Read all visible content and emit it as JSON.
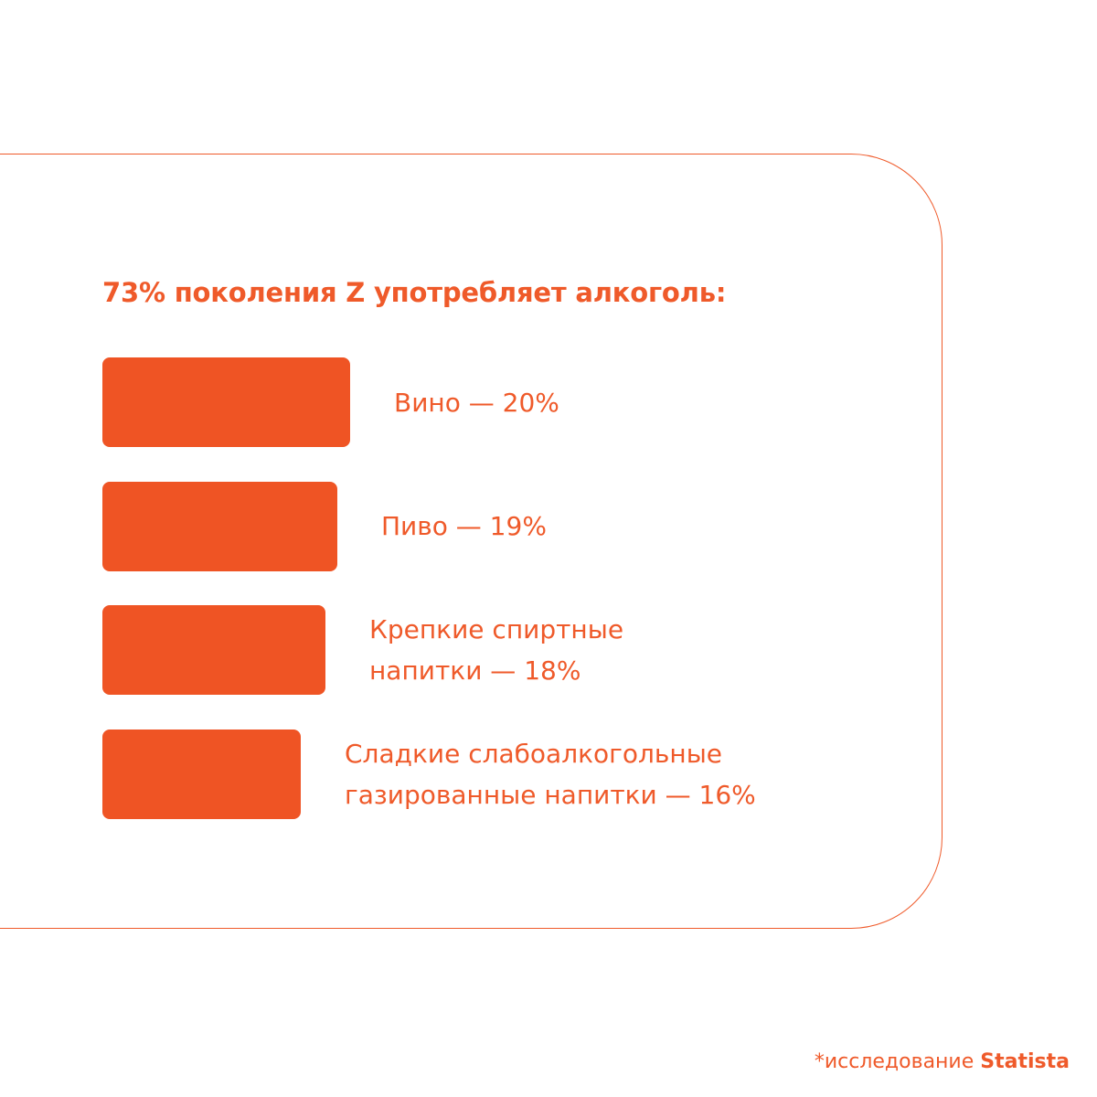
{
  "colors": {
    "accent": "#EF5A2A",
    "bar": "#EF5424",
    "background": "#FFFFFF"
  },
  "chart_data": {
    "type": "bar",
    "orientation": "horizontal",
    "title": "73% поколения Z употребляет алкоголь:",
    "categories": [
      "Вино",
      "Пиво",
      "Крепкие спиртные напитки",
      "Сладкие слабоалкогольные газированные напитки"
    ],
    "values": [
      20,
      19,
      18,
      16
    ],
    "unit": "%",
    "labels": [
      "Вино — 20%",
      "Пиво — 19%",
      "Крепкие спиртные\nнапитки — 18%",
      "Сладкие слабоалкогольные\nгазированные напитки — 16%"
    ]
  },
  "footnote": {
    "prefix": "*исследование ",
    "source": "Statista"
  }
}
